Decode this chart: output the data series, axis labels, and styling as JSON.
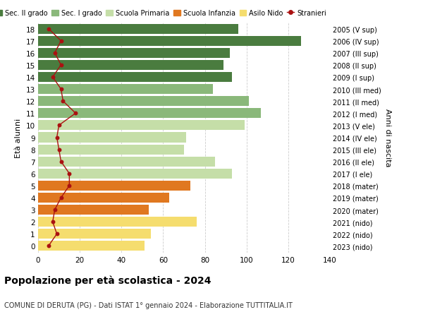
{
  "ages": [
    18,
    17,
    16,
    15,
    14,
    13,
    12,
    11,
    10,
    9,
    8,
    7,
    6,
    5,
    4,
    3,
    2,
    1,
    0
  ],
  "right_labels": [
    "2005 (V sup)",
    "2006 (IV sup)",
    "2007 (III sup)",
    "2008 (II sup)",
    "2009 (I sup)",
    "2010 (III med)",
    "2011 (II med)",
    "2012 (I med)",
    "2013 (V ele)",
    "2014 (IV ele)",
    "2015 (III ele)",
    "2016 (II ele)",
    "2017 (I ele)",
    "2018 (mater)",
    "2019 (mater)",
    "2020 (mater)",
    "2021 (nido)",
    "2022 (nido)",
    "2023 (nido)"
  ],
  "bar_values": [
    96,
    126,
    92,
    89,
    93,
    84,
    101,
    107,
    99,
    71,
    70,
    85,
    93,
    73,
    63,
    53,
    76,
    54,
    51
  ],
  "bar_colors": [
    "#4a7c3f",
    "#4a7c3f",
    "#4a7c3f",
    "#4a7c3f",
    "#4a7c3f",
    "#8ab87a",
    "#8ab87a",
    "#8ab87a",
    "#c5dea8",
    "#c5dea8",
    "#c5dea8",
    "#c5dea8",
    "#c5dea8",
    "#e07820",
    "#e07820",
    "#e07820",
    "#f5dd6e",
    "#f5dd6e",
    "#f5dd6e"
  ],
  "stranieri_values": [
    5,
    11,
    8,
    11,
    7,
    11,
    12,
    18,
    10,
    9,
    10,
    11,
    15,
    15,
    11,
    8,
    7,
    9,
    5
  ],
  "stranieri_color": "#aa1111",
  "xlim": [
    0,
    140
  ],
  "xticks": [
    0,
    20,
    40,
    60,
    80,
    100,
    120,
    140
  ],
  "ylabel_left": "Età alunni",
  "ylabel_right": "Anni di nascita",
  "title_bold": "Popolazione per età scolastica - 2024",
  "subtitle": "COMUNE DI DERUTA (PG) - Dati ISTAT 1° gennaio 2024 - Elaborazione TUTTITALIA.IT",
  "legend_labels": [
    "Sec. II grado",
    "Sec. I grado",
    "Scuola Primaria",
    "Scuola Infanzia",
    "Asilo Nido",
    "Stranieri"
  ],
  "legend_colors": [
    "#4a7c3f",
    "#8ab87a",
    "#c5dea8",
    "#e07820",
    "#f5dd6e",
    "#aa1111"
  ],
  "bg_color": "#ffffff",
  "bar_height": 0.82
}
